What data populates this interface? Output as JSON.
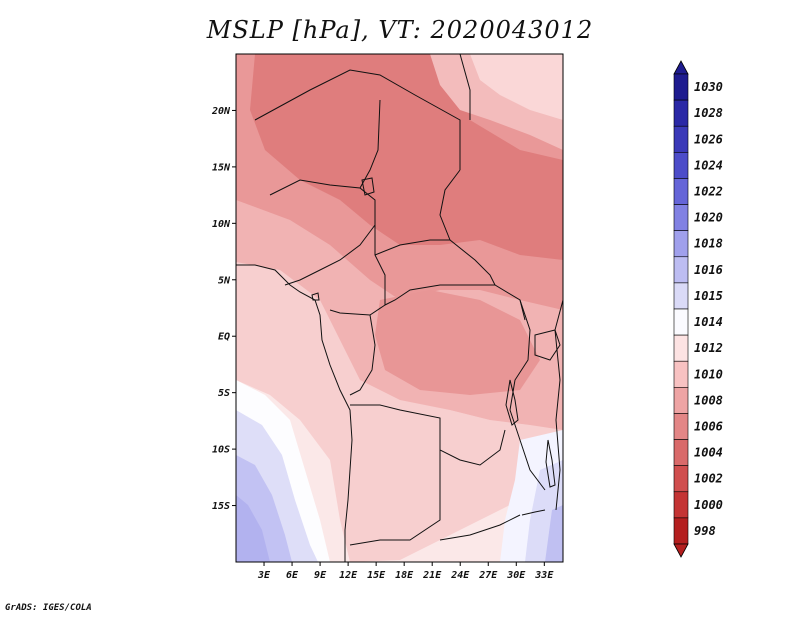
{
  "title": "MSLP [hPa], VT: 2020043012",
  "credit": "GrADS: IGES/COLA",
  "map": {
    "lon_range": [
      0,
      35
    ],
    "lat_range": [
      -20,
      25
    ],
    "lat_ticks": [
      {
        "lat": 20,
        "label": "20N"
      },
      {
        "lat": 15,
        "label": "15N"
      },
      {
        "lat": 10,
        "label": "10N"
      },
      {
        "lat": 5,
        "label": "5N"
      },
      {
        "lat": 0,
        "label": "EQ"
      },
      {
        "lat": -5,
        "label": "5S"
      },
      {
        "lat": -10,
        "label": "10S"
      },
      {
        "lat": -15,
        "label": "15S"
      }
    ],
    "lon_ticks": [
      {
        "lon": 3,
        "label": "3E"
      },
      {
        "lon": 6,
        "label": "6E"
      },
      {
        "lon": 9,
        "label": "9E"
      },
      {
        "lon": 12,
        "label": "12E"
      },
      {
        "lon": 15,
        "label": "15E"
      },
      {
        "lon": 18,
        "label": "18E"
      },
      {
        "lon": 21,
        "label": "21E"
      },
      {
        "lon": 24,
        "label": "24E"
      },
      {
        "lon": 27,
        "label": "27E"
      },
      {
        "lon": 30,
        "label": "30E"
      },
      {
        "lon": 33,
        "label": "33E"
      }
    ]
  },
  "legend": {
    "units": "hPa",
    "levels": [
      {
        "label": "1030",
        "color": "#1e1b8f"
      },
      {
        "label": "1028",
        "color": "#2a28a6"
      },
      {
        "label": "1026",
        "color": "#3a39b8"
      },
      {
        "label": "1024",
        "color": "#4c4cc9"
      },
      {
        "label": "1022",
        "color": "#6565d8"
      },
      {
        "label": "1020",
        "color": "#8181e3"
      },
      {
        "label": "1018",
        "color": "#a0a0ec"
      },
      {
        "label": "1016",
        "color": "#bdbdf2"
      },
      {
        "label": "1015",
        "color": "#dadaf7"
      },
      {
        "label": "1014",
        "color": "#fbfbff"
      },
      {
        "label": "1012",
        "color": "#fde3e3"
      },
      {
        "label": "1010",
        "color": "#f8c2c2"
      },
      {
        "label": "1008",
        "color": "#eea4a4"
      },
      {
        "label": "1006",
        "color": "#e38686"
      },
      {
        "label": "1004",
        "color": "#d96a6a"
      },
      {
        "label": "1002",
        "color": "#d04e4e"
      },
      {
        "label": "1000",
        "color": "#c43434"
      },
      {
        "label": "998",
        "color": "#b41f1f"
      }
    ],
    "top_cap_color": "#1e1b8f",
    "bottom_cap_color": "#b41f1f"
  }
}
